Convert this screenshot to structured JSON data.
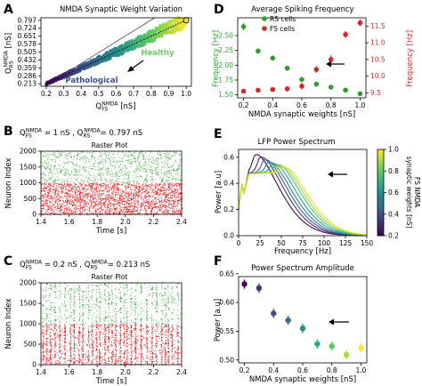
{
  "panel_labels": [
    "A",
    "B",
    "C",
    "D",
    "E",
    "F"
  ],
  "chart_data": [
    {
      "id": "A",
      "type": "scatter",
      "title": "NMDA Synaptic Weight Variation",
      "xlabel": "Q_FS^NMDA [nS]",
      "ylabel": "Q_RS^NMDA [nS]",
      "xticks": [
        "0.2",
        "0.3",
        "0.4",
        "0.5",
        "0.6",
        "0.7",
        "0.8",
        "0.9",
        "1.0"
      ],
      "yticks": [
        "0.797",
        "0.724",
        "0.651",
        "0.578",
        "0.505",
        "0.432",
        "0.359",
        "0.286",
        "0.213"
      ],
      "xlim": [
        0.17,
        1.03
      ],
      "ylim": [
        0.19,
        0.82
      ],
      "annotations": [
        "Healthy",
        "Pathological"
      ],
      "trajectory": {
        "x": [
          0.2,
          1.0
        ],
        "y": [
          0.213,
          0.797
        ]
      },
      "colormap": [
        "#440154",
        "#3b528b",
        "#21908d",
        "#5dc963",
        "#fde725"
      ]
    },
    {
      "id": "B",
      "type": "raster",
      "params": "Q_FS^NMDA = 1 nS  ,  Q_RS^NMDA= 0.797 nS",
      "title": "Raster Plot",
      "xlabel": "Time [s]",
      "ylabel": "Neuron Index",
      "xticks": [
        "1.4",
        "1.6",
        "1.8",
        "2.0",
        "2.2",
        "2.4"
      ],
      "xlim": [
        1.4,
        2.4
      ],
      "yticks": [
        "0",
        "500",
        "1000",
        "1500",
        "2000"
      ],
      "ylim": [
        0,
        2000
      ],
      "populations": [
        {
          "name": "RS",
          "range": [
            0,
            1000
          ],
          "color": "#e41a1c",
          "density": 0.82
        },
        {
          "name": "FS",
          "range": [
            1000,
            2000
          ],
          "color": "#2ca02c",
          "density": 0.28
        }
      ],
      "synchrony": 0.0
    },
    {
      "id": "C",
      "type": "raster",
      "params": "Q_FS^NMDA = 0.2 nS , Q_RS^NMDA= 0.213 nS",
      "title": "Raster Plot",
      "xlabel": "Time [s]",
      "ylabel": "Neuron Index",
      "xticks": [
        "1.4",
        "1.6",
        "1.8",
        "2.0",
        "2.2",
        "2.4"
      ],
      "xlim": [
        1.4,
        2.4
      ],
      "yticks": [
        "0",
        "500",
        "1000",
        "1500",
        "2000"
      ],
      "ylim": [
        0,
        2000
      ],
      "populations": [
        {
          "name": "RS",
          "range": [
            0,
            1000
          ],
          "color": "#e41a1c",
          "density": 0.55
        },
        {
          "name": "FS",
          "range": [
            1000,
            2000
          ],
          "color": "#2ca02c",
          "density": 0.22
        }
      ],
      "synchrony": 0.7
    },
    {
      "id": "D",
      "type": "scatter",
      "title": "Average Spiking Frequency",
      "xlabel": "NMDA synaptic weights [nS]",
      "ylabel_left": "Frequency [Hz]",
      "ylabel_right": "Frequency [Hz]",
      "xticks": [
        "0.2",
        "0.4",
        "0.6",
        "0.8",
        "1.0"
      ],
      "xlim": [
        0.16,
        1.04
      ],
      "yticks_left": [
        "1.50",
        "1.75",
        "2.00",
        "2.25",
        "2.50"
      ],
      "ylim_left": [
        1.45,
        2.8
      ],
      "yticks_right": [
        "9.5",
        "10.0",
        "10.5",
        "11.0",
        "11.5"
      ],
      "ylim_right": [
        9.35,
        11.75
      ],
      "legend": [
        "RS cells",
        "FS cells"
      ],
      "series": [
        {
          "name": "RS cells",
          "axis": "left",
          "color": "#2ca02c",
          "x": [
            0.2,
            0.3,
            0.4,
            0.5,
            0.6,
            0.7,
            0.8,
            0.9,
            1.0
          ],
          "y": [
            2.65,
            2.24,
            2.12,
            1.95,
            1.76,
            1.68,
            1.63,
            1.58,
            1.52
          ],
          "err": [
            0.06,
            0.04,
            0.04,
            0.04,
            0.03,
            0.03,
            0.03,
            0.03,
            0.03
          ]
        },
        {
          "name": "FS cells",
          "axis": "right",
          "color": "#d62728",
          "x": [
            0.2,
            0.3,
            0.4,
            0.5,
            0.6,
            0.7,
            0.8,
            0.9,
            1.0
          ],
          "y": [
            9.55,
            9.58,
            9.6,
            9.62,
            9.7,
            10.2,
            10.5,
            11.25,
            11.6
          ],
          "err": [
            0.05,
            0.05,
            0.05,
            0.08,
            0.1,
            0.1,
            0.12,
            0.1,
            0.1
          ]
        }
      ]
    },
    {
      "id": "E",
      "type": "line",
      "title": "LFP Power Spectrum",
      "xlabel": "Frequency [Hz]",
      "ylabel": "Power [a.u]",
      "xticks": [
        "0",
        "25",
        "50",
        "75",
        "100",
        "125",
        "150"
      ],
      "xlim": [
        0,
        150
      ],
      "yticks": [
        "0.0",
        "0.2",
        "0.4",
        "0.6"
      ],
      "ylim": [
        0,
        0.66
      ],
      "colorbar": {
        "label": "FS NMDA synaptic weights [nS]",
        "ticks": [
          "0.2",
          "0.4",
          "0.6",
          "0.8",
          "1.0"
        ],
        "range": [
          0.2,
          1.0
        ]
      },
      "series": [
        {
          "w": 0.2,
          "color": "#440154",
          "peak_f": 22,
          "peak": 0.62
        },
        {
          "w": 0.3,
          "color": "#46327e",
          "peak_f": 28,
          "peak": 0.6
        },
        {
          "w": 0.4,
          "color": "#365c8d",
          "peak_f": 33,
          "peak": 0.58
        },
        {
          "w": 0.5,
          "color": "#277f8e",
          "peak_f": 38,
          "peak": 0.56
        },
        {
          "w": 0.6,
          "color": "#1fa187",
          "peak_f": 43,
          "peak": 0.55
        },
        {
          "w": 0.7,
          "color": "#4ac16d",
          "peak_f": 48,
          "peak": 0.54
        },
        {
          "w": 0.8,
          "color": "#a0da39",
          "peak_f": 52,
          "peak": 0.53
        },
        {
          "w": 1.0,
          "color": "#e6e419",
          "peak_f": 56,
          "peak": 0.52
        }
      ]
    },
    {
      "id": "F",
      "type": "scatter",
      "title": "Power Spectrum Amplitude",
      "xlabel": "NMDA synaptic weights [nS]",
      "ylabel": "Power [a.u]",
      "xticks": [
        "0.2",
        "0.4",
        "0.6",
        "0.8",
        "1.0"
      ],
      "xlim": [
        0.16,
        1.04
      ],
      "yticks": [
        "0.50",
        "0.55",
        "0.60",
        "0.65"
      ],
      "ylim": [
        0.495,
        0.645
      ],
      "series": [
        {
          "x": [
            0.2,
            0.3,
            0.4,
            0.5,
            0.6,
            0.7,
            0.8,
            0.9,
            1.0
          ],
          "y": [
            0.632,
            0.625,
            0.581,
            0.569,
            0.555,
            0.528,
            0.524,
            0.509,
            0.521
          ],
          "err": [
            0.008,
            0.008,
            0.008,
            0.008,
            0.008,
            0.008,
            0.008,
            0.008,
            0.008
          ],
          "colors": [
            "#440154",
            "#472c7a",
            "#3b518b",
            "#2c718e",
            "#21908d",
            "#27ad81",
            "#5cc863",
            "#aadc32",
            "#fde725"
          ]
        }
      ]
    }
  ]
}
